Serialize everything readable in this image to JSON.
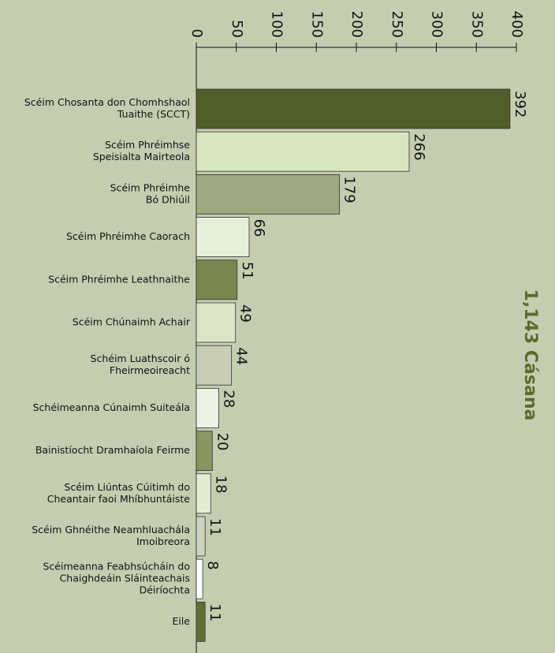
{
  "chart_data": {
    "type": "bar",
    "orientation": "horizontal",
    "annotation": "1,143 Cásana",
    "categories": [
      [
        "Scéim Chosanta don Chomhshaol",
        "Tuaithe (SCCT)"
      ],
      [
        "Scéim Phréimhse",
        "Speisialta Mairteola"
      ],
      [
        "Scéim Phréimhe",
        "Bó Dhiúil"
      ],
      [
        "Scéim Phréimhe Caorach"
      ],
      [
        "Scéim Phréimhe Leathnaithe"
      ],
      [
        "Scéim Chúnaimh Achair"
      ],
      [
        "Schéim Luathscoir ó",
        "Fheirmeoireacht"
      ],
      [
        "Schéimeanna Cúnaimh Suiteála"
      ],
      [
        "Bainistíocht Dramhaíola Feirme"
      ],
      [
        "Scéim Liúntas Cúitimh do",
        "Cheantair faoi Mhíbhuntáiste"
      ],
      [
        "Scéim Ghnéithe Neamhluachála",
        "Imoibreora"
      ],
      [
        "Scéimeanna Feabhsúcháin do",
        "Chaighdeáin Sláinteachais",
        "Déiríochta"
      ],
      [
        "Eile"
      ]
    ],
    "values": [
      392,
      266,
      179,
      66,
      51,
      49,
      44,
      28,
      20,
      18,
      11,
      8,
      11
    ],
    "colors": [
      "#4f5e2a",
      "#d7e6bd",
      "#9fa880",
      "#e6efd9",
      "#7a8550",
      "#dce6c6",
      "#c9cdb6",
      "#eef2e6",
      "#8a9563",
      "#e3ecd2",
      "#cfd3be",
      "#ffffff",
      "#5f6e32"
    ],
    "xlim": [
      0,
      400
    ],
    "xticks": [
      0,
      50,
      100,
      150,
      200,
      250,
      300,
      350,
      400
    ]
  }
}
